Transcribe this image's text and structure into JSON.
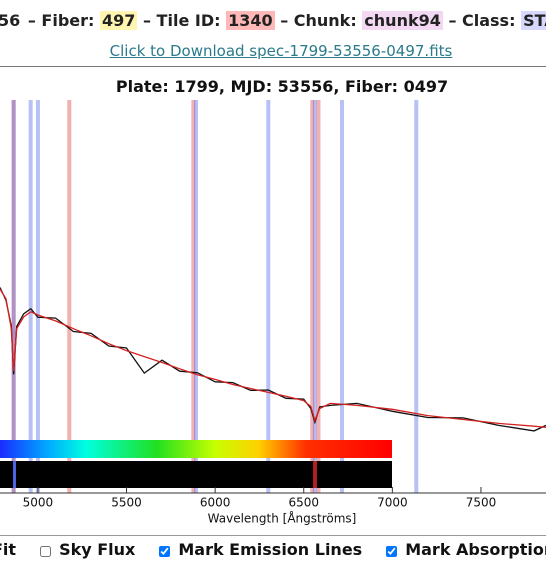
{
  "header": {
    "items": [
      {
        "value": "56"
      },
      {
        "label": "– Fiber:",
        "value": "497"
      },
      {
        "label": "– Tile ID:",
        "value": "1340"
      },
      {
        "label": "– Chunk:",
        "value": "chunk94"
      },
      {
        "label": "– Class:",
        "value": "STAR"
      }
    ],
    "download_link": "Click to Download spec-1799-53556-0497.fits"
  },
  "chart_data": {
    "type": "line",
    "title": "Plate: 1799, MJD: 53556, Fiber: 0497",
    "xlabel": "Wavelength [Ångströms]",
    "x": [
      4786,
      4820,
      4850,
      4863,
      4880,
      4920,
      4960,
      5000,
      5100,
      5200,
      5300,
      5400,
      5500,
      5600,
      5700,
      5800,
      5900,
      6000,
      6100,
      6200,
      6300,
      6400,
      6500,
      6540,
      6563,
      6590,
      6650,
      6800,
      7000,
      7200,
      7400,
      7600,
      7800,
      7867
    ],
    "series": [
      {
        "color": "#111111",
        "values": [
          52.3,
          49.0,
          42.5,
          30.2,
          42.4,
          45.6,
          46.9,
          44.7,
          44.5,
          41.1,
          40.6,
          37.4,
          36.9,
          30.5,
          33.8,
          31.0,
          30.6,
          28.3,
          28.1,
          26.1,
          26.2,
          24.1,
          23.9,
          21.5,
          18.0,
          21.9,
          22.3,
          22.8,
          20.8,
          19.2,
          19.1,
          17.2,
          15.8,
          17.2
        ]
      },
      {
        "color": "#d62020",
        "values": [
          51.9,
          49.4,
          41.8,
          31.1,
          41.8,
          44.8,
          46.1,
          45.3,
          43.8,
          41.8,
          40.0,
          38.0,
          36.2,
          34.7,
          33.2,
          31.6,
          30.1,
          28.9,
          27.6,
          26.6,
          25.6,
          24.6,
          23.5,
          22.0,
          18.5,
          21.5,
          22.8,
          22.3,
          21.3,
          19.7,
          18.7,
          17.7,
          17.0,
          16.7
        ]
      }
    ],
    "emission_lines": {
      "color": "#e23a3a",
      "values": [
        4863,
        5177,
        5877,
        6548,
        6583
      ]
    },
    "absorption_lines": {
      "color": "#4a64e6",
      "values": [
        4863,
        4959,
        5000,
        5892,
        6300,
        6563,
        6716,
        7135
      ]
    },
    "xlim": [
      4786,
      7867
    ],
    "xticks": [
      5000,
      5500,
      6000,
      6500,
      7000,
      7500
    ],
    "ylim": [
      0,
      100
    ]
  },
  "controls": [
    {
      "label": "Fit"
    },
    {
      "label": "Sky Flux",
      "checked": false
    },
    {
      "label": "Mark Emission Lines",
      "checked": true
    },
    {
      "label": "Mark Absorption",
      "checked": true
    }
  ]
}
